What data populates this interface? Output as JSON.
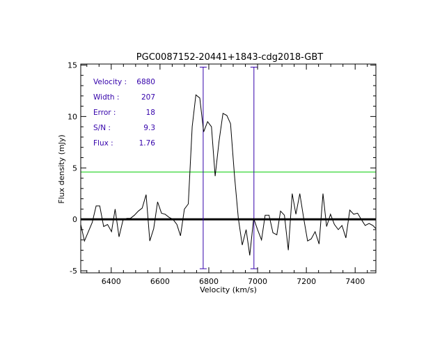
{
  "chart_data": {
    "type": "line",
    "title": "PGC0087152-20441+1843-cdg2018-GBT",
    "xlabel": "Velocity (km/s)",
    "ylabel": "Flux density (mJy)",
    "xlim": [
      6275,
      7485
    ],
    "ylim": [
      -5.2,
      15.1
    ],
    "x_ticks": [
      6400,
      6600,
      6800,
      7000,
      7200,
      7400
    ],
    "y_ticks": [
      -5,
      0,
      5,
      10,
      15
    ],
    "grid": false,
    "series": [
      {
        "color": "#000000",
        "x": [
          6275,
          6290,
          6306,
          6322,
          6338,
          6353,
          6369,
          6385,
          6401,
          6416,
          6432,
          6448,
          6464,
          6479,
          6495,
          6511,
          6527,
          6543,
          6558,
          6574,
          6590,
          6606,
          6621,
          6637,
          6653,
          6669,
          6684,
          6700,
          6716,
          6732,
          6747,
          6763,
          6779,
          6795,
          6811,
          6826,
          6842,
          6858,
          6874,
          6889,
          6905,
          6921,
          6937,
          6953,
          6968,
          6984,
          7000,
          7016,
          7031,
          7047,
          7063,
          7079,
          7094,
          7110,
          7126,
          7142,
          7157,
          7173,
          7189,
          7205,
          7220,
          7236,
          7252,
          7268,
          7283,
          7299,
          7315,
          7331,
          7346,
          7362,
          7378,
          7394,
          7410,
          7425,
          7441,
          7457,
          7473,
          7485
        ],
        "y": [
          -0.5,
          -2.1,
          -1.2,
          -0.3,
          1.3,
          1.3,
          -0.7,
          -0.5,
          -1.2,
          1.0,
          -1.7,
          -0.1,
          0.1,
          0.1,
          0.4,
          0.8,
          1.1,
          2.4,
          -2.1,
          -0.9,
          1.7,
          0.6,
          0.5,
          0.2,
          0.0,
          -0.5,
          -1.6,
          1.0,
          1.5,
          9.0,
          12.1,
          11.8,
          8.5,
          9.5,
          9.0,
          4.2,
          7.6,
          10.3,
          10.1,
          9.3,
          4.3,
          0.1,
          -2.5,
          -1.0,
          -3.5,
          0.1,
          -1.0,
          -2.0,
          0.4,
          0.4,
          -1.3,
          -1.5,
          0.8,
          0.4,
          -3.0,
          2.5,
          0.5,
          2.5,
          0.1,
          -2.1,
          -1.9,
          -1.2,
          -2.4,
          2.5,
          -0.7,
          0.5,
          -0.5,
          -1.0,
          -0.6,
          -1.8,
          0.9,
          0.5,
          0.6,
          0.0,
          -0.6,
          -0.4,
          -0.6,
          -0.9
        ]
      }
    ],
    "reference_lines": [
      {
        "orientation": "horizontal",
        "value": 0,
        "color": "#000000"
      },
      {
        "orientation": "horizontal",
        "value": 4.6,
        "color": "#00cc00"
      },
      {
        "orientation": "vertical",
        "value": 6777,
        "color": "#3300aa",
        "span": [
          -4.8,
          14.8
        ]
      },
      {
        "orientation": "vertical",
        "value": 6985,
        "color": "#3300aa",
        "span": [
          -4.8,
          14.8
        ]
      }
    ],
    "annotations": [
      {
        "label": "Velocity :",
        "value": "6880"
      },
      {
        "label": "Width :",
        "value": "207"
      },
      {
        "label": "Error :",
        "value": "18"
      },
      {
        "label": "S/N :",
        "value": "9.3"
      },
      {
        "label": "Flux :",
        "value": "1.76"
      }
    ],
    "annotation_color": "#3300aa"
  }
}
